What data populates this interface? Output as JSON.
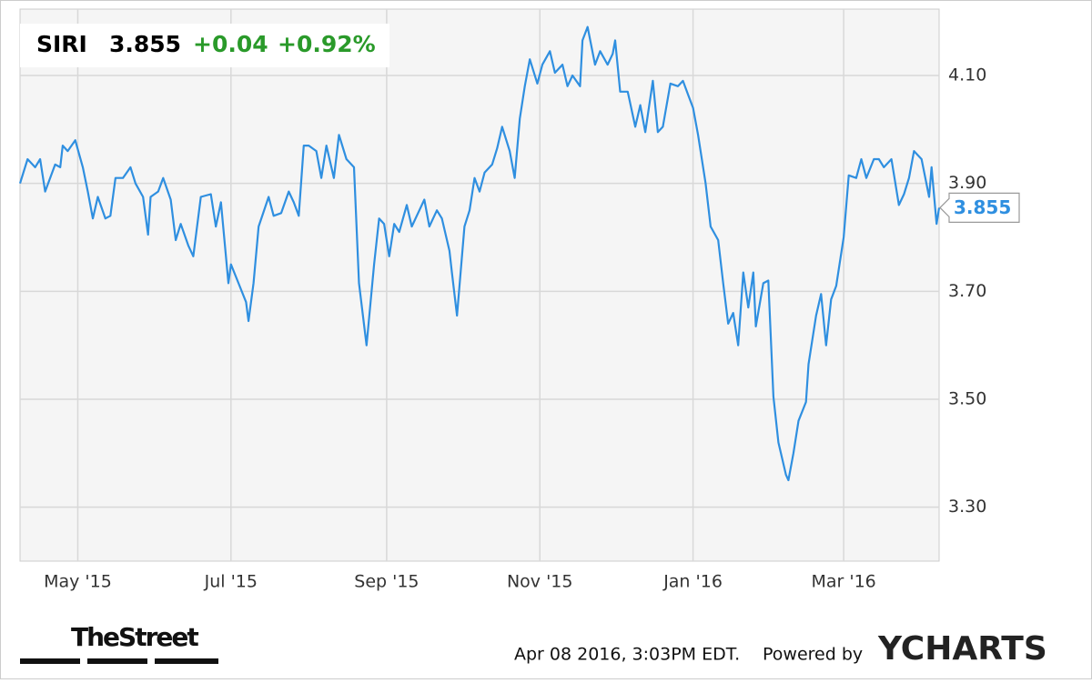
{
  "chart_data": {
    "type": "line",
    "title": "SIRI",
    "last_price": 3.855,
    "change_label": "+0.04",
    "change_percent_label": "+0.92%",
    "change_color": "#2a9a2a",
    "x": [
      0,
      3,
      6,
      8,
      10,
      14,
      16,
      17,
      19,
      22,
      25,
      27,
      29,
      31,
      34,
      36,
      38,
      41,
      44,
      46,
      49,
      51,
      52,
      55,
      57,
      60,
      62,
      64,
      67,
      69,
      72,
      76,
      78,
      80,
      83,
      84,
      87,
      90,
      91,
      93,
      95,
      99,
      101,
      104,
      107,
      109,
      111,
      113,
      115,
      118,
      120,
      122,
      125,
      127,
      130,
      133,
      135,
      138,
      141,
      143,
      145,
      147,
      149,
      151,
      154,
      156,
      159,
      161,
      163,
      166,
      168,
      171,
      172,
      174,
      177,
      179,
      181,
      183,
      185,
      188,
      190,
      192,
      195,
      197,
      199,
      201,
      203,
      206,
      208,
      211,
      213,
      216,
      218,
      220,
      223,
      224,
      226,
      229,
      231,
      234,
      236,
      237,
      239,
      242,
      245,
      247,
      249,
      252,
      254,
      256,
      259,
      262,
      264,
      266,
      268,
      270,
      273,
      275,
      278,
      280,
      282,
      284,
      286,
      288,
      290,
      292,
      293,
      296,
      298,
      300,
      302,
      305,
      306,
      308,
      310,
      313,
      314,
      317,
      319,
      321,
      323,
      325,
      328,
      330,
      333,
      335,
      337,
      340,
      342,
      344,
      347,
      350,
      352,
      354,
      356,
      359,
      362,
      363,
      365,
      366
    ],
    "series": [
      {
        "name": "SIRI",
        "color": "#2f8fe0",
        "values": [
          3.9,
          3.945,
          3.93,
          3.945,
          3.885,
          3.935,
          3.93,
          3.97,
          3.96,
          3.98,
          3.93,
          3.885,
          3.835,
          3.875,
          3.835,
          3.84,
          3.91,
          3.91,
          3.93,
          3.9,
          3.875,
          3.805,
          3.875,
          3.885,
          3.91,
          3.87,
          3.795,
          3.825,
          3.785,
          3.765,
          3.875,
          3.88,
          3.82,
          3.865,
          3.715,
          3.75,
          3.715,
          3.68,
          3.645,
          3.715,
          3.82,
          3.875,
          3.84,
          3.845,
          3.885,
          3.865,
          3.84,
          3.97,
          3.97,
          3.96,
          3.91,
          3.97,
          3.91,
          3.99,
          3.945,
          3.93,
          3.715,
          3.6,
          3.75,
          3.835,
          3.825,
          3.765,
          3.825,
          3.81,
          3.86,
          3.82,
          3.85,
          3.87,
          3.82,
          3.85,
          3.835,
          3.775,
          3.735,
          3.655,
          3.82,
          3.85,
          3.91,
          3.885,
          3.92,
          3.935,
          3.965,
          4.005,
          3.96,
          3.91,
          4.02,
          4.08,
          4.13,
          4.085,
          4.12,
          4.145,
          4.105,
          4.12,
          4.08,
          4.1,
          4.08,
          4.165,
          4.19,
          4.12,
          4.145,
          4.12,
          4.14,
          4.165,
          4.07,
          4.07,
          4.005,
          4.045,
          3.995,
          4.09,
          3.995,
          4.005,
          4.085,
          4.08,
          4.09,
          4.065,
          4.04,
          3.99,
          3.9,
          3.82,
          3.795,
          3.715,
          3.64,
          3.66,
          3.6,
          3.735,
          3.67,
          3.735,
          3.635,
          3.715,
          3.72,
          3.505,
          3.42,
          3.36,
          3.35,
          3.4,
          3.46,
          3.495,
          3.565,
          3.655,
          3.695,
          3.6,
          3.685,
          3.71,
          3.8,
          3.915,
          3.91,
          3.945,
          3.91,
          3.945,
          3.945,
          3.93,
          3.945,
          3.86,
          3.88,
          3.91,
          3.96,
          3.945,
          3.875,
          3.93,
          3.825,
          3.855
        ]
      }
    ],
    "xlim": [
      0,
      366
    ],
    "xticks": [
      {
        "value": 23,
        "label": "May '15"
      },
      {
        "value": 84,
        "label": "Jul '15"
      },
      {
        "value": 146,
        "label": "Sep '15"
      },
      {
        "value": 207,
        "label": "Nov '15"
      },
      {
        "value": 268,
        "label": "Jan '16"
      },
      {
        "value": 328,
        "label": "Mar '16"
      }
    ],
    "ylim": [
      3.2,
      4.223
    ],
    "yticks": [
      {
        "value": 3.3,
        "label": "3.30"
      },
      {
        "value": 3.5,
        "label": "3.50"
      },
      {
        "value": 3.7,
        "label": "3.70"
      },
      {
        "value": 3.9,
        "label": "3.90"
      },
      {
        "value": 4.1,
        "label": "4.10"
      }
    ],
    "grid": true
  },
  "footer": {
    "publisher": "TheStreet",
    "timestamp": "Apr 08 2016, 3:03PM EDT.",
    "powered_by": "Powered by",
    "brand": "YCHARTS"
  }
}
